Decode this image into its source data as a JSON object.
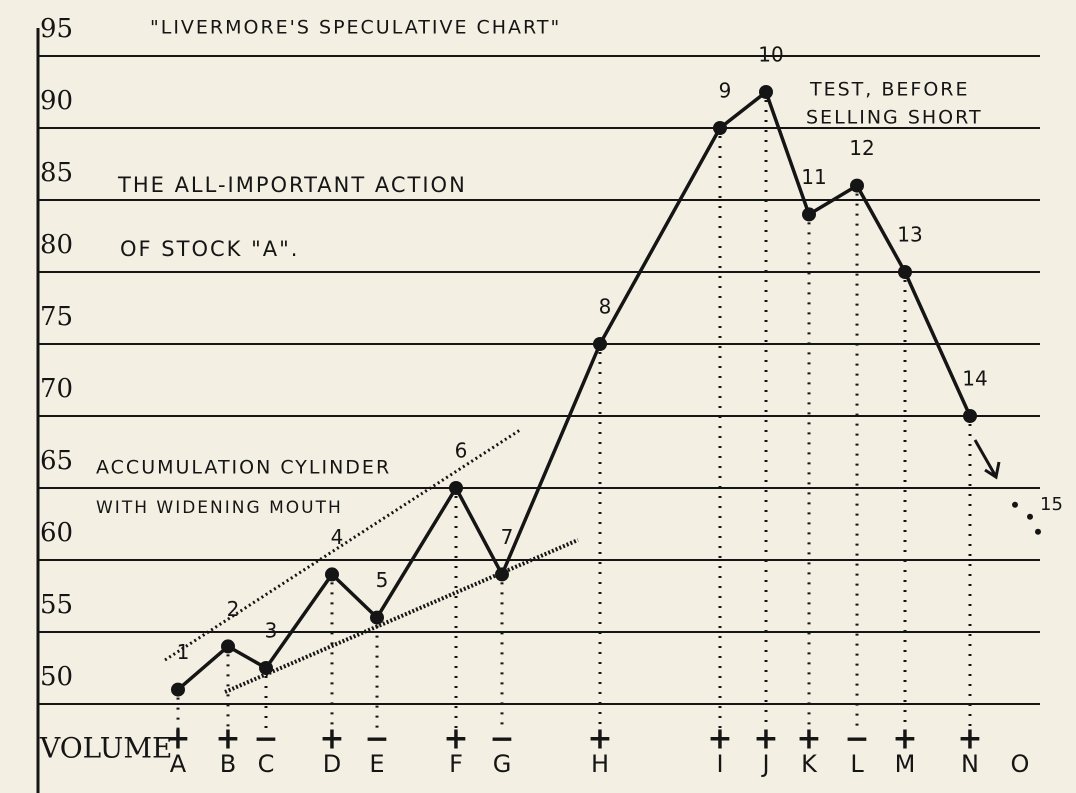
{
  "chart_data": {
    "type": "line",
    "title": "\"LIVERMORE'S SPECULATIVE CHART\"",
    "annotations": [
      "THE ALL-IMPORTANT ACTION",
      "OF STOCK \"A\".",
      "ACCUMULATION CYLINDER",
      "WITH WIDENING MOUTH",
      "TEST, BEFORE",
      "SELLING SHORT"
    ],
    "volume_label": "VOLUME",
    "categories": [
      "A",
      "B",
      "C",
      "D",
      "E",
      "F",
      "G",
      "H",
      "I",
      "J",
      "K",
      "L",
      "M",
      "N",
      "O"
    ],
    "category_x": [
      178,
      228,
      266,
      332,
      377,
      456,
      502,
      600,
      720,
      766,
      809,
      857,
      905,
      970,
      1020
    ],
    "volume_signs": [
      "+",
      "+",
      "−",
      "+",
      "−",
      "+",
      "−",
      "+",
      "+",
      "+",
      "+",
      "−",
      "+",
      "+",
      null
    ],
    "series": [
      {
        "name": "Stock A",
        "color": "#151515",
        "values": [
          51,
          54,
          52.5,
          59,
          56,
          65,
          59,
          75,
          90,
          92.5,
          84,
          86,
          80,
          70,
          null
        ],
        "point_labels": [
          "1",
          "2",
          "3",
          "4",
          "5",
          "6",
          "7",
          "8",
          "9",
          "10",
          "11",
          "12",
          "13",
          "14",
          null
        ]
      }
    ],
    "projection": {
      "value": 63,
      "label": "15"
    },
    "ylim": [
      50,
      95
    ],
    "yticks": [
      50,
      55,
      60,
      65,
      70,
      75,
      80,
      85,
      90,
      95
    ],
    "grid": true
  }
}
